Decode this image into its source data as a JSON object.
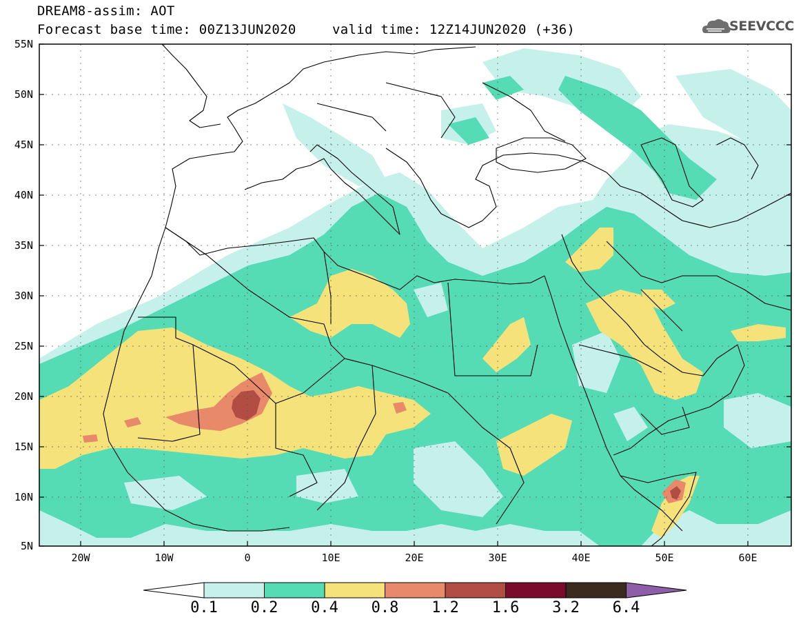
{
  "header": {
    "line1": "DREAM8-assim: AOT",
    "line2": "Forecast base time: 00Z13JUN2020",
    "line3": "valid time: 12Z14JUN2020 (+36)",
    "brand": "SEEVCCC"
  },
  "map": {
    "lat_labels": [
      "55N",
      "50N",
      "45N",
      "40N",
      "35N",
      "30N",
      "25N",
      "20N",
      "15N",
      "10N",
      "5N"
    ],
    "lon_labels": [
      "20W",
      "10W",
      "0",
      "10E",
      "20E",
      "30E",
      "40E",
      "50E",
      "60E"
    ]
  },
  "colorbar": {
    "labels": [
      "0.1",
      "0.2",
      "0.4",
      "0.8",
      "1.2",
      "1.6",
      "3.2",
      "6.4"
    ],
    "colors": [
      "#ffffff",
      "#c6f0ea",
      "#55dcb4",
      "#f5e27a",
      "#e8896a",
      "#b14d42",
      "#7a0b2c",
      "#3c2a1e",
      "#8e5fa8"
    ]
  }
}
